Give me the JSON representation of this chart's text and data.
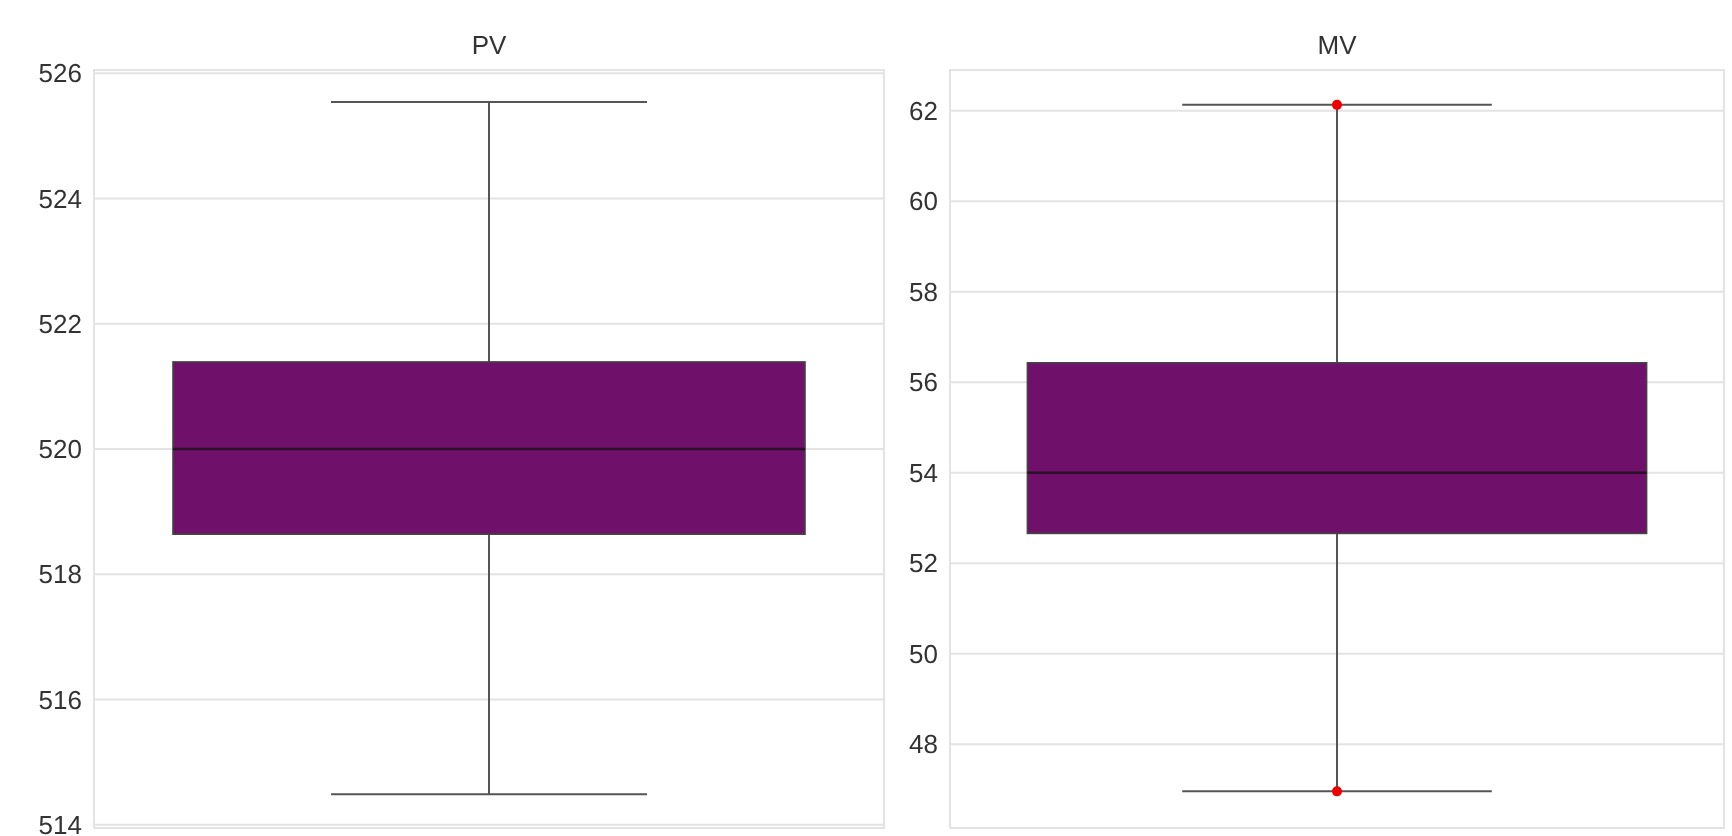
{
  "chart_data": [
    {
      "type": "box",
      "title": "PV",
      "categories": [
        null
      ],
      "ylim": [
        513.95,
        526.05
      ],
      "yticks": [
        514,
        516,
        518,
        520,
        522,
        524,
        526
      ],
      "grid": "y",
      "tick_labels": "y",
      "series": [
        {
          "color": "#6f116b",
          "boxes": [
            {
              "low": 514.49,
              "q1": 518.64,
              "median": 520,
              "q3": 521.39,
              "high": 525.54
            }
          ]
        }
      ]
    },
    {
      "type": "box",
      "title": "MV",
      "categories": [
        null
      ],
      "ylim": [
        46.15,
        62.9
      ],
      "yticks": [
        48,
        50,
        52,
        54,
        56,
        58,
        60,
        62
      ],
      "grid": "y",
      "tick_labels": "y",
      "series": [
        {
          "color": "#6f116b",
          "boxes": [
            {
              "low": 46.96,
              "q1": 52.66,
              "median": 54,
              "q3": 56.43,
              "high": 62.13,
              "outliers": [
                62.13,
                46.96
              ]
            }
          ]
        }
      ]
    }
  ]
}
